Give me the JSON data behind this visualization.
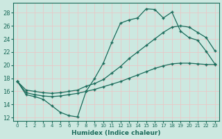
{
  "xlabel": "Humidex (Indice chaleur)",
  "bg_color": "#cce8e0",
  "grid_color": "#e8c8c8",
  "line_color": "#1a6b5a",
  "xlim": [
    -0.5,
    23.5
  ],
  "ylim": [
    11.5,
    29.5
  ],
  "xticks": [
    0,
    1,
    2,
    3,
    4,
    5,
    6,
    7,
    8,
    9,
    10,
    11,
    12,
    13,
    14,
    15,
    16,
    17,
    18,
    19,
    20,
    21,
    22,
    23
  ],
  "yticks": [
    12,
    14,
    16,
    18,
    20,
    22,
    24,
    26,
    28
  ],
  "line1_x": [
    0,
    1,
    2,
    3,
    4,
    5,
    6,
    7,
    8,
    9,
    10,
    11,
    12,
    13,
    14,
    15,
    16,
    17,
    18,
    19,
    20,
    21,
    22,
    23
  ],
  "line1_y": [
    17.5,
    15.5,
    15.2,
    14.8,
    13.8,
    12.8,
    12.3,
    12.1,
    16.0,
    18.0,
    20.3,
    23.5,
    26.4,
    26.9,
    27.2,
    28.6,
    28.5,
    27.2,
    28.1,
    25.2,
    24.2,
    23.8,
    22.1,
    20.2
  ],
  "line2_x": [
    0,
    1,
    2,
    3,
    4,
    5,
    6,
    7,
    8,
    9,
    10,
    11,
    12,
    13,
    14,
    15,
    16,
    17,
    18,
    19,
    20,
    21,
    22,
    23
  ],
  "line2_y": [
    17.5,
    16.2,
    16.0,
    15.8,
    15.7,
    15.8,
    16.0,
    16.2,
    16.8,
    17.2,
    17.8,
    18.8,
    19.8,
    21.0,
    22.0,
    23.0,
    24.0,
    25.0,
    25.8,
    26.0,
    25.8,
    25.0,
    24.2,
    22.2
  ],
  "line3_x": [
    0,
    1,
    2,
    3,
    4,
    5,
    6,
    7,
    8,
    9,
    10,
    11,
    12,
    13,
    14,
    15,
    16,
    17,
    18,
    19,
    20,
    21,
    22,
    23
  ],
  "line3_y": [
    17.5,
    15.8,
    15.5,
    15.3,
    15.2,
    15.3,
    15.5,
    15.7,
    16.0,
    16.3,
    16.7,
    17.1,
    17.5,
    18.0,
    18.5,
    19.0,
    19.5,
    19.9,
    20.2,
    20.3,
    20.3,
    20.2,
    20.1,
    20.1
  ]
}
